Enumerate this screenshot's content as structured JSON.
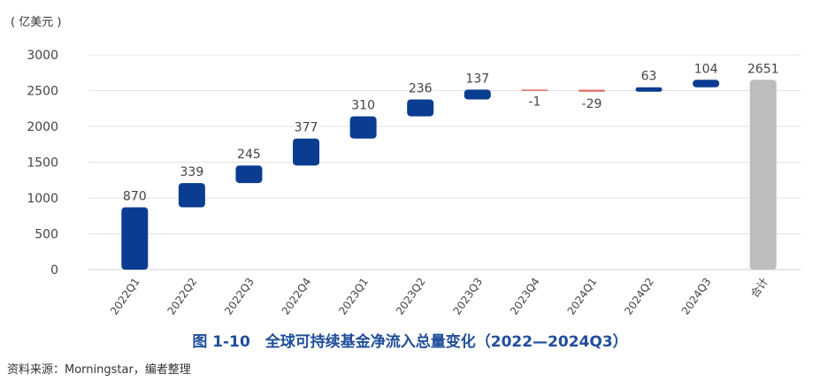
{
  "unit_label": "( 亿美元 )",
  "caption": "图 1-10　全球可持续基金净流入总量变化（2022—2024Q3）",
  "source": "资料来源：Morningstar，编者整理",
  "colors": {
    "positive": "#0a3d91",
    "negative": "#e06b63",
    "total": "#bdbdbd",
    "grid": "#e3e3e3"
  },
  "chart_data": {
    "type": "waterfall",
    "categories": [
      "2022Q1",
      "2022Q2",
      "2022Q3",
      "2022Q4",
      "2023Q1",
      "2023Q2",
      "2023Q3",
      "2023Q4",
      "2024Q1",
      "2024Q2",
      "2024Q3",
      "合计"
    ],
    "values": [
      870,
      339,
      245,
      377,
      310,
      236,
      137,
      -1,
      -29,
      63,
      104,
      2651
    ],
    "data_labels": [
      "870",
      "339",
      "245",
      "377",
      "310",
      "236",
      "137",
      "-1",
      "-29",
      "63",
      "104",
      "2651"
    ],
    "total_index": 11,
    "ylim": [
      0,
      3000
    ],
    "yticks": [
      0,
      500,
      1000,
      1500,
      2000,
      2500,
      3000
    ],
    "grid": true
  }
}
